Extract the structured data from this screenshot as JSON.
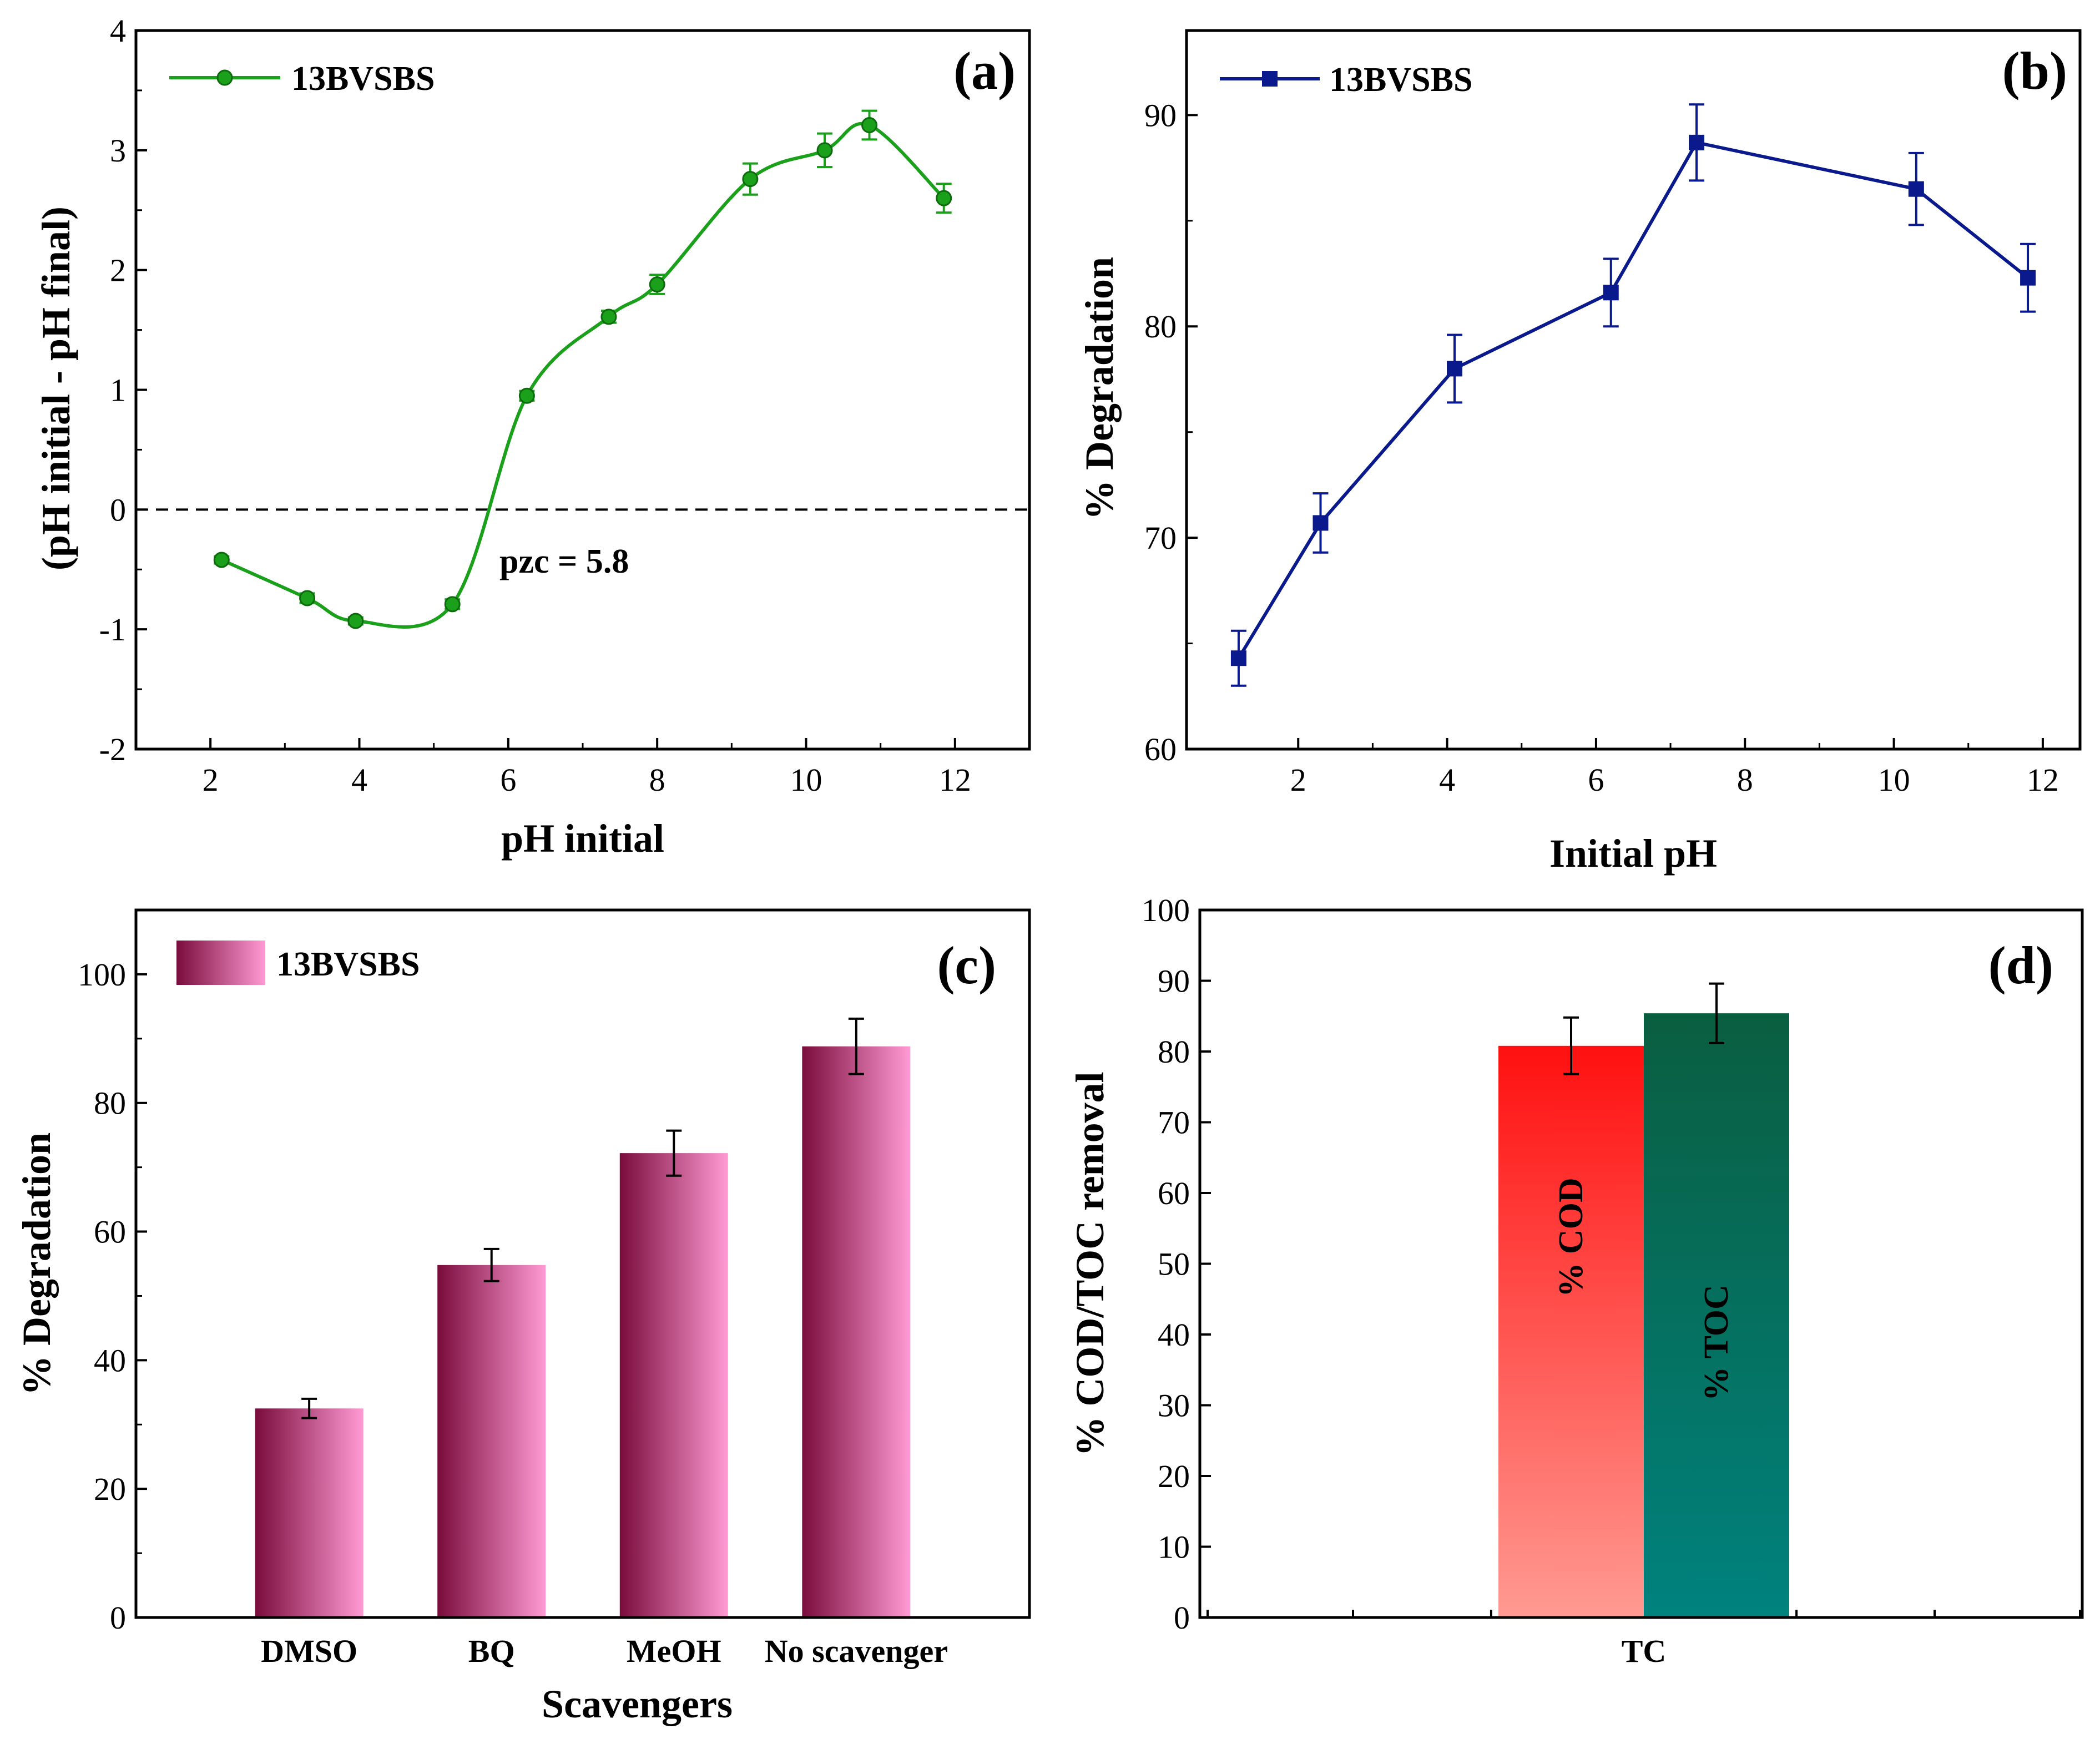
{
  "chart_data": [
    {
      "id": "a",
      "type": "line",
      "panel_label": "(a)",
      "xlabel": "pH initial",
      "ylabel": "(pH initial - pH final)",
      "xlim": [
        1,
        13
      ],
      "ylim": [
        -2,
        4
      ],
      "xticks": [
        "2",
        "4",
        "6",
        "8",
        "10",
        "12"
      ],
      "yticks": [
        "-2",
        "-1",
        "0",
        "1",
        "2",
        "3",
        "4"
      ],
      "reference_line": {
        "y": 0,
        "style": "dashed"
      },
      "annotation": "pzc = 5.8",
      "series": [
        {
          "name": "13BVSBS",
          "color": "#1aa01a",
          "marker": "circle",
          "x": [
            2.15,
            3.3,
            3.95,
            5.25,
            6.25,
            7.35,
            8.0,
            9.25,
            10.25,
            10.85,
            11.85
          ],
          "y": [
            -0.42,
            -0.74,
            -0.93,
            -0.79,
            0.95,
            1.61,
            1.88,
            2.76,
            3.0,
            3.21,
            2.6
          ],
          "err": [
            0.03,
            0.04,
            0.03,
            0.04,
            0.04,
            0.05,
            0.08,
            0.13,
            0.14,
            0.12,
            0.12
          ]
        }
      ]
    },
    {
      "id": "b",
      "type": "line",
      "panel_label": "(b)",
      "xlabel": "Initial pH",
      "ylabel": "% Degradation",
      "xlim": [
        0.5,
        12.5
      ],
      "ylim": [
        60,
        94
      ],
      "xticks": [
        "2",
        "4",
        "6",
        "8",
        "10",
        "12"
      ],
      "yticks": [
        "60",
        "70",
        "80",
        "90"
      ],
      "series": [
        {
          "name": "13BVSBS",
          "color": "#0a1a8c",
          "marker": "square",
          "x": [
            1.2,
            2.3,
            4.1,
            6.2,
            7.35,
            10.3,
            11.8
          ],
          "y": [
            64.3,
            70.7,
            78.0,
            81.6,
            88.7,
            86.5,
            82.3
          ],
          "err": [
            1.3,
            1.4,
            1.6,
            1.6,
            1.8,
            1.7,
            1.6
          ]
        }
      ]
    },
    {
      "id": "c",
      "type": "bar",
      "panel_label": "(c)",
      "xlabel": "Scavengers",
      "ylabel": "% Degradation",
      "ylim": [
        0,
        110
      ],
      "yticks": [
        "0",
        "20",
        "40",
        "60",
        "80",
        "100"
      ],
      "categories": [
        "DMSO",
        "BQ",
        "MeOH",
        "No scavenger"
      ],
      "series": [
        {
          "name": "13BVSBS",
          "gradient": [
            "#7a0c3c",
            "#ff9ad4"
          ],
          "values": [
            32.5,
            54.8,
            72.2,
            88.8
          ],
          "err": [
            1.5,
            2.5,
            3.5,
            4.3
          ]
        }
      ]
    },
    {
      "id": "d",
      "type": "bar",
      "panel_label": "(d)",
      "xlabel": "",
      "ylabel": "% COD/TOC removal",
      "ylim": [
        0,
        100
      ],
      "yticks": [
        "0",
        "10",
        "20",
        "30",
        "40",
        "50",
        "60",
        "70",
        "80",
        "90",
        "100"
      ],
      "categories": [
        "TC"
      ],
      "series": [
        {
          "name": "% COD",
          "gradient": [
            "#ff1010",
            "#ff9a92"
          ],
          "values": [
            80.8
          ],
          "err": [
            4.0
          ]
        },
        {
          "name": "% TOC",
          "gradient": [
            "#0a5e40",
            "#00827e"
          ],
          "values": [
            85.4
          ],
          "err": [
            4.2
          ]
        }
      ]
    }
  ]
}
